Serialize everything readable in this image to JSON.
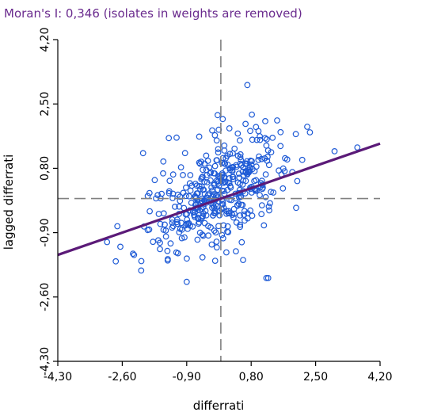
{
  "chart_data": {
    "type": "scatter",
    "title": "Moran's I: 0,346 (isolates in weights are removed)",
    "xlabel": "differrati",
    "ylabel": "lagged differrati",
    "xlim": [
      -4.3,
      4.2
    ],
    "ylim": [
      -4.3,
      4.2
    ],
    "x_tick_labels": [
      "-4,30",
      "-2,60",
      "-0,90",
      "0,80",
      "2,50",
      "4,20"
    ],
    "y_tick_labels": [
      "-4,30",
      "-2,60",
      "-0,90",
      "0,80",
      "2,50",
      "4,20"
    ],
    "moran_i": 0.346,
    "regression_line": {
      "slope": 0.346,
      "intercept": 0.0
    },
    "reference_lines": {
      "x": 0.0,
      "y": 0.0,
      "style": "dashed"
    },
    "grid": false,
    "legend": "none",
    "colors": {
      "points": "#1f5bd6",
      "regression": "#5b1a78",
      "reference": "#808080",
      "title": "#6a2b8e"
    },
    "point_count_approx": 420
  }
}
